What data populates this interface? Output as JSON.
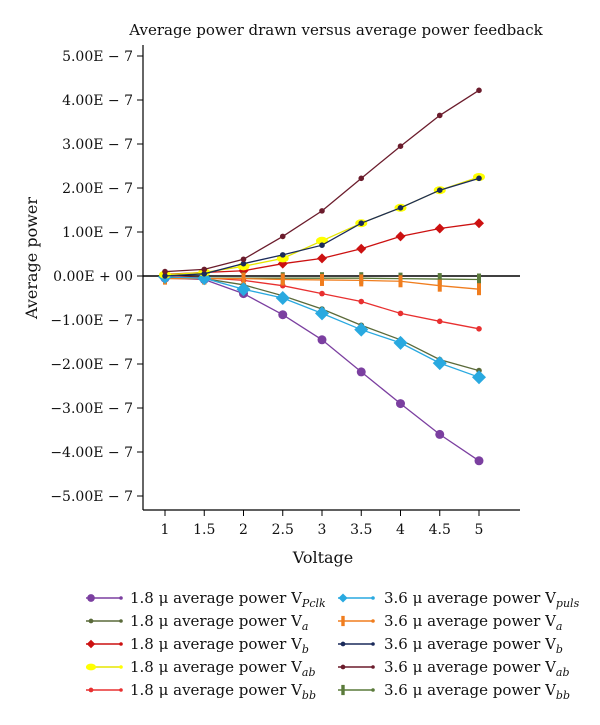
{
  "chart_data": {
    "type": "line",
    "title": "Average power drawn versus average power feedback",
    "xlabel": "Voltage",
    "ylabel": "Average power",
    "x": [
      1,
      1.5,
      2,
      2.5,
      3,
      3.5,
      4,
      4.5,
      5
    ],
    "xticks": [
      "1",
      "1.5",
      "2",
      "2.5",
      "3",
      "3.5",
      "4",
      "4.5",
      "5"
    ],
    "yticks": [
      {
        "value": 5e-07,
        "label": "5.00E − 7"
      },
      {
        "value": 4e-07,
        "label": "4.00E − 7"
      },
      {
        "value": 3e-07,
        "label": "3.00E − 7"
      },
      {
        "value": 2e-07,
        "label": "2.00E − 7"
      },
      {
        "value": 1e-07,
        "label": "1.00E − 7"
      },
      {
        "value": 0,
        "label": "0.00E + 00"
      },
      {
        "value": -1e-07,
        "label": "−1.00E − 7"
      },
      {
        "value": -2e-07,
        "label": "−2.00E − 7"
      },
      {
        "value": -3e-07,
        "label": "−3.00E − 7"
      },
      {
        "value": -4e-07,
        "label": "−4.00E − 7"
      },
      {
        "value": -5e-07,
        "label": "−5.00E − 7"
      }
    ],
    "ylim": [
      -5.5e-07,
      5.5e-07
    ],
    "grid": false,
    "legend_position": "bottom",
    "series": [
      {
        "legend": "1.8 μ average power V",
        "sub": "Pclk",
        "color": "#7b3fa0",
        "marker": "circle",
        "values": [
          -5e-09,
          -8e-09,
          -4e-08,
          -8.8e-08,
          -1.45e-07,
          -2.18e-07,
          -2.9e-07,
          -3.6e-07,
          -4.2e-07
        ]
      },
      {
        "legend": "1.8 μ average power V",
        "sub": "a",
        "color": "#5a6a3a",
        "marker": "dot",
        "values": [
          -3e-09,
          -6e-09,
          -2e-08,
          -4.5e-08,
          -7.5e-08,
          -1.12e-07,
          -1.45e-07,
          -1.9e-07,
          -2.15e-07
        ]
      },
      {
        "legend": "1.8 μ average power V",
        "sub": "b",
        "color": "#cc1111",
        "marker": "diamond",
        "values": [
          4e-09,
          8e-09,
          1.2e-08,
          2.8e-08,
          4e-08,
          6.2e-08,
          9e-08,
          1.08e-07,
          1.2e-07
        ]
      },
      {
        "legend": "1.8 μ average power V",
        "sub": "ab",
        "color": "#ffff00",
        "marker": "ellipse",
        "values": [
          3e-09,
          8e-09,
          2.2e-08,
          4e-08,
          8e-08,
          1.2e-07,
          1.55e-07,
          1.95e-07,
          2.25e-07
        ]
      },
      {
        "legend": "1.8 μ average power V",
        "sub": "bb",
        "color": "#e83030",
        "marker": "dot",
        "values": [
          0,
          -4e-09,
          -1e-08,
          -2.2e-08,
          -4e-08,
          -5.8e-08,
          -8.5e-08,
          -1.03e-07,
          -1.2e-07
        ]
      },
      {
        "legend": "3.6 μ average power V",
        "sub": "puls",
        "color": "#29a9e0",
        "marker": "bigdiamond",
        "values": [
          -2e-09,
          -5e-09,
          -3e-08,
          -5e-08,
          -8.5e-08,
          -1.22e-07,
          -1.52e-07,
          -1.98e-07,
          -2.3e-07
        ]
      },
      {
        "legend": "3.6 μ average power V",
        "sub": "a",
        "color": "#f07d1e",
        "marker": "bar",
        "values": [
          -6e-09,
          -6e-09,
          -6e-09,
          -8e-09,
          -9e-09,
          -1e-08,
          -1.2e-08,
          -2.2e-08,
          -3e-08
        ]
      },
      {
        "legend": "3.6 μ average power V",
        "sub": "b",
        "color": "#1a2a5a",
        "marker": "dot",
        "values": [
          0,
          5e-09,
          2.8e-08,
          4.8e-08,
          7e-08,
          1.2e-07,
          1.55e-07,
          1.95e-07,
          2.22e-07
        ]
      },
      {
        "legend": "3.6 μ average power V",
        "sub": "ab",
        "color": "#6b1c2c",
        "marker": "dot",
        "values": [
          1e-08,
          1.5e-08,
          3.8e-08,
          9e-08,
          1.48e-07,
          2.22e-07,
          2.95e-07,
          3.65e-07,
          4.22e-07
        ]
      },
      {
        "legend": "3.6 μ average power V",
        "sub": "bb",
        "color": "#5a7a3a",
        "marker": "bar",
        "values": [
          -4e-09,
          -5e-09,
          -5e-09,
          -5e-09,
          -5e-09,
          -5e-09,
          -6e-09,
          -7e-09,
          -8e-09
        ]
      }
    ]
  }
}
